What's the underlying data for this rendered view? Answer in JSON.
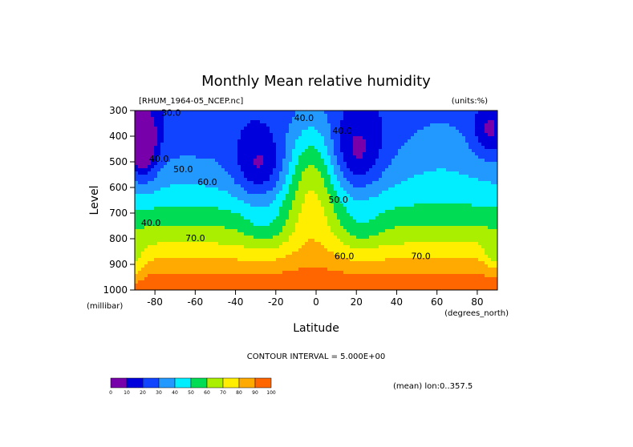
{
  "chart_data": {
    "type": "heatmap",
    "title": "Monthly Mean relative humidity",
    "dataset_label": "[RHUM_1964-05_NCEP.nc]",
    "units_label": "(units:%)",
    "xlabel": "Latitude",
    "ylabel": "Level",
    "x_unit_label": "(degrees_north)",
    "y_unit_label": "(millibar)",
    "x_range": [
      -90,
      90
    ],
    "y_range": [
      1000,
      300
    ],
    "x_ticks": [
      -80,
      -60,
      -40,
      -20,
      0,
      20,
      40,
      60,
      80
    ],
    "x_tick_labels": [
      "-80",
      "-60",
      "-40",
      "-20",
      "0",
      "20",
      "40",
      "60",
      "80"
    ],
    "y_ticks": [
      300,
      400,
      500,
      600,
      700,
      800,
      900,
      1000
    ],
    "y_tick_labels": [
      "300",
      "400",
      "500",
      "600",
      "700",
      "800",
      "900",
      "1000"
    ],
    "contour_interval_text": "CONTOUR INTERVAL = 5.000E+00",
    "mean_text": "(mean) lon:0..357.5",
    "contour_labels": [
      {
        "text": "40.0",
        "lat": -6,
        "lev": 340
      },
      {
        "text": "40.0",
        "lat": 13,
        "lev": 390
      },
      {
        "text": "30.0",
        "lat": -72,
        "lev": 320
      },
      {
        "text": "40.0",
        "lat": -78,
        "lev": 500
      },
      {
        "text": "50.0",
        "lat": -66,
        "lev": 540
      },
      {
        "text": "60.0",
        "lat": -54,
        "lev": 590
      },
      {
        "text": "50.0",
        "lat": 11,
        "lev": 660
      },
      {
        "text": "40.0",
        "lat": -82,
        "lev": 750
      },
      {
        "text": "70.0",
        "lat": -60,
        "lev": 810
      },
      {
        "text": "60.0",
        "lat": 14,
        "lev": 880
      },
      {
        "text": "70.0",
        "lat": 52,
        "lev": 880
      }
    ],
    "colorbar": {
      "ticks": [
        "0",
        "10",
        "20",
        "30",
        "40",
        "50",
        "60",
        "70",
        "80",
        "90",
        "100"
      ],
      "colors": [
        "#7700aa",
        "#0000dd",
        "#1144ff",
        "#2299ff",
        "#00eeff",
        "#00dd55",
        "#aaee00",
        "#ffee00",
        "#ffaa00",
        "#ff6600",
        "#ff1100"
      ]
    }
  }
}
